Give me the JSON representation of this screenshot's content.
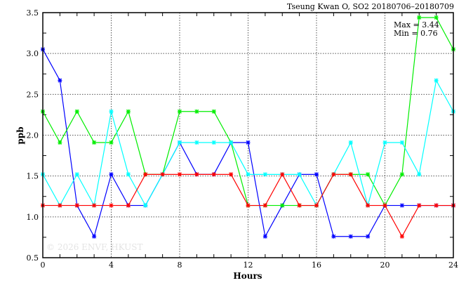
{
  "chart_data": {
    "type": "line",
    "title": "Tseung Kwan O, SO2 20180706–20180709",
    "xlabel": "Hours",
    "ylabel": "ppb",
    "xlim": [
      0,
      24
    ],
    "ylim": [
      0.5,
      3.5
    ],
    "xticks": [
      0,
      4,
      8,
      12,
      16,
      20,
      24
    ],
    "yticks": [
      "0.5",
      "1.0",
      "1.5",
      "2.0",
      "2.5",
      "3.0",
      "3.5"
    ],
    "grid": true,
    "annotation_max": "Max = 3.44",
    "annotation_min": "Min = 0.76",
    "watermark": "© 2026  ENVF, HKUST",
    "x": [
      0,
      1,
      2,
      3,
      4,
      5,
      6,
      7,
      8,
      9,
      10,
      11,
      12,
      13,
      14,
      15,
      16,
      17,
      18,
      19,
      20,
      21,
      22,
      23,
      24
    ],
    "series": [
      {
        "name": "blue",
        "color": "#0000ff",
        "values": [
          3.05,
          2.67,
          1.14,
          0.76,
          1.52,
          1.14,
          1.14,
          1.52,
          1.91,
          1.52,
          1.52,
          1.91,
          1.91,
          0.76,
          1.14,
          1.52,
          1.52,
          0.76,
          0.76,
          0.76,
          1.14,
          1.14,
          1.14,
          1.14,
          1.14
        ]
      },
      {
        "name": "green",
        "color": "#00ee00",
        "values": [
          2.29,
          1.91,
          2.29,
          1.91,
          1.91,
          2.29,
          1.52,
          1.52,
          2.29,
          2.29,
          2.29,
          1.91,
          1.14,
          1.14,
          1.14,
          1.14,
          1.14,
          1.52,
          1.52,
          1.52,
          1.14,
          1.52,
          3.44,
          3.44,
          3.05
        ]
      },
      {
        "name": "cyan",
        "color": "#00ffff",
        "values": [
          1.52,
          1.14,
          1.52,
          1.14,
          2.29,
          1.52,
          1.14,
          1.52,
          1.91,
          1.91,
          1.91,
          1.91,
          1.52,
          1.52,
          1.52,
          1.52,
          1.14,
          1.52,
          1.91,
          1.14,
          1.91,
          1.91,
          1.52,
          2.67,
          2.29
        ]
      },
      {
        "name": "red",
        "color": "#ff0000",
        "values": [
          1.14,
          1.14,
          1.14,
          1.14,
          1.14,
          1.14,
          1.52,
          1.52,
          1.52,
          1.52,
          1.52,
          1.52,
          1.14,
          1.14,
          1.52,
          1.14,
          1.14,
          1.52,
          1.52,
          1.14,
          1.14,
          0.76,
          1.14,
          1.14,
          1.14
        ]
      }
    ]
  }
}
